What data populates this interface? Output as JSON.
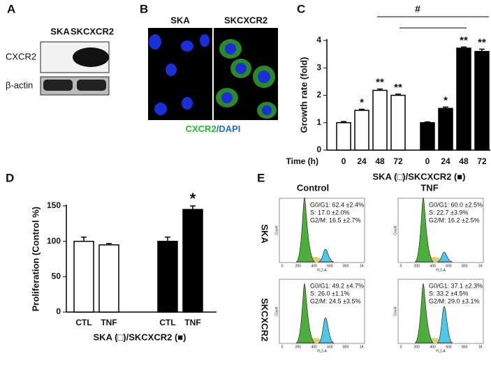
{
  "panel_labels": [
    "A",
    "B",
    "C",
    "D",
    "E"
  ],
  "blot": {
    "lanes": [
      "SKA",
      "SKCXCR2"
    ],
    "rows": [
      "CXCR2",
      "β-actin"
    ]
  },
  "microscopy": {
    "columns": [
      "SKA",
      "SKCXCR2"
    ],
    "caption": [
      {
        "text": "CXCR2",
        "color": "#22c022"
      },
      {
        "text": "/",
        "color": "#1f6fd0"
      },
      {
        "text": "DAPI",
        "color": "#1f6fd0"
      }
    ]
  },
  "chart_data": [
    {
      "type": "bar",
      "y_label": "Growth rate (fold)",
      "x_prefix": "Time (h)",
      "x_label": "SKA (□)/SKCXCR2 (■)",
      "categories": [
        "0",
        "24",
        "48",
        "72"
      ],
      "series": [
        {
          "color": "#ffffff",
          "values": [
            1.0,
            1.45,
            2.18,
            2.0
          ],
          "errors": [
            0.04,
            0.04,
            0.05,
            0.04
          ],
          "annotations": [
            null,
            "*",
            "**",
            "**"
          ]
        },
        {
          "color": "#000000",
          "values": [
            1.0,
            1.52,
            3.72,
            3.6
          ],
          "errors": [
            0.03,
            0.05,
            0.04,
            0.08
          ],
          "annotations": [
            null,
            "*",
            "**",
            "**"
          ]
        }
      ],
      "bracket_label": "#",
      "ylim": [
        0,
        4
      ],
      "yticks": [
        0,
        1,
        2,
        3,
        4
      ]
    },
    {
      "type": "bar",
      "y_label": "Proliferation (Control %)",
      "x_label": "SKA (□)/SKCXCR2 (■)",
      "categories": [
        "CTL",
        "TNF"
      ],
      "series": [
        {
          "color": "#ffffff",
          "values": [
            100,
            95
          ],
          "errors": [
            6,
            2
          ],
          "annotations": [
            null,
            null
          ]
        },
        {
          "color": "#000000",
          "values": [
            100,
            145
          ],
          "errors": [
            6,
            5
          ],
          "annotations": [
            null,
            "*"
          ]
        }
      ],
      "ylim": [
        0,
        150
      ],
      "yticks": [
        0,
        50,
        100,
        150
      ]
    }
  ],
  "flow": {
    "columns": [
      "Control",
      "TNF"
    ],
    "rows": [
      "SKA",
      "SKCXCR2"
    ],
    "x_ticks": [
      "0",
      "200",
      "400",
      "600",
      "800",
      "1K"
    ],
    "x_axis": "FL2-A",
    "y_axis": "Count",
    "panels": [
      {
        "stats": [
          {
            "text": "G0/G1: 62.4 ±2.4%",
            "color": "#111"
          },
          {
            "text": "S: 17.0 ±2.0%",
            "color": "#111"
          },
          {
            "text": "G2/M: 16.5 ±2.7%",
            "color": "#111"
          }
        ]
      },
      {
        "stats": [
          {
            "text": "G0/G1: 60.0 ±2.5%",
            "color": "#111"
          },
          {
            "text": "S: 22.7 ±3.9%",
            "color": "#111"
          },
          {
            "text": "G2/M: 16.2 ±2.5%",
            "color": "#111"
          }
        ]
      },
      {
        "stats": [
          {
            "text": "G0/G1: 49.2 ±4.7%",
            "color": "#1e7fc8"
          },
          {
            "text": "S: 26.0 ±1.1%",
            "color": "#1e7fc8"
          },
          {
            "text": "G2/M: 24.5 ±3.5%",
            "color": "#111"
          }
        ]
      },
      {
        "stats": [
          {
            "text": "G0/G1: 37.1 ±2.3%",
            "color": "#d01818"
          },
          {
            "text": "S: 33.2 ±4.5%",
            "color": "#111"
          },
          {
            "text": "G2/M: 29.0 ±3.1%",
            "color": "#111"
          }
        ]
      }
    ]
  }
}
